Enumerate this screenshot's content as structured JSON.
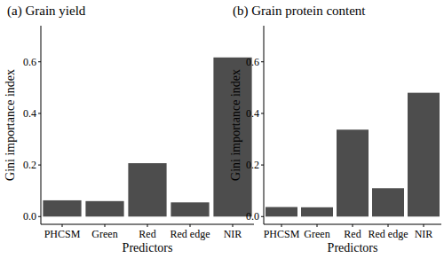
{
  "chart_data": [
    {
      "type": "bar",
      "title": "(a) Grain yield",
      "x_label": "Predictors",
      "y_label": "Gini importance index",
      "categories": [
        "PHCSM",
        "Green",
        "Red",
        "Red edge",
        "NIR"
      ],
      "values": [
        0.063,
        0.06,
        0.207,
        0.055,
        0.617
      ],
      "color": "#4d4d4d",
      "ylim": [
        -0.03,
        0.74
      ],
      "yticks": [
        {
          "value": 0,
          "label": "0.0"
        },
        0.2,
        0.4,
        0.6
      ],
      "grid": false
    },
    {
      "type": "bar",
      "title": "(b) Grain protein content",
      "x_label": "Predictors",
      "y_label": "Gini importance index",
      "categories": [
        "PHCSM",
        "Green",
        "Red",
        "Red edge",
        "NIR"
      ],
      "values": [
        0.037,
        0.036,
        0.337,
        0.11,
        0.48
      ],
      "color": "#4d4d4d",
      "ylim": [
        -0.03,
        0.74
      ],
      "yticks": [
        {
          "value": 0,
          "label": "0.0"
        },
        0.2,
        0.4,
        0.6
      ],
      "grid": false
    }
  ]
}
